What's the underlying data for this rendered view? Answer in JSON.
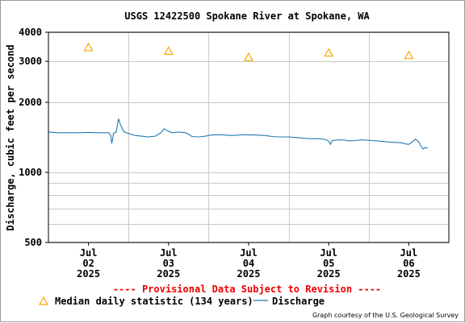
{
  "chart_data": {
    "type": "line",
    "title": "USGS 12422500 Spokane River at Spokane, WA",
    "ylabel": "Discharge, cubic feet per second",
    "xlabel": "",
    "yscale": "log",
    "ylim": [
      500,
      4000
    ],
    "y_ticks": [
      {
        "value": 500,
        "label": "500"
      },
      {
        "value": 1000,
        "label": "1000"
      },
      {
        "value": 2000,
        "label": "2000"
      },
      {
        "value": 3000,
        "label": "3000"
      },
      {
        "value": 4000,
        "label": "4000"
      }
    ],
    "y_minor_ticks": [
      600,
      700,
      800,
      900
    ],
    "xlim": [
      "2025-07-01T12:00",
      "2025-07-06T12:00"
    ],
    "x_ticks": [
      {
        "date": "2025-07-02T00:00",
        "label": [
          "Jul",
          "02",
          "2025"
        ]
      },
      {
        "date": "2025-07-03T00:00",
        "label": [
          "Jul",
          "03",
          "2025"
        ]
      },
      {
        "date": "2025-07-04T00:00",
        "label": [
          "Jul",
          "04",
          "2025"
        ]
      },
      {
        "date": "2025-07-05T00:00",
        "label": [
          "Jul",
          "05",
          "2025"
        ]
      },
      {
        "date": "2025-07-06T00:00",
        "label": [
          "Jul",
          "06",
          "2025"
        ]
      }
    ],
    "x_gridlines": [
      "2025-07-02T12:00",
      "2025-07-03T12:00",
      "2025-07-04T12:00",
      "2025-07-05T12:00"
    ],
    "grid": true,
    "series": [
      {
        "name": "Discharge",
        "color": "#1f77b4",
        "marker": "line",
        "points": [
          [
            "2025-07-01T12:00",
            1490
          ],
          [
            "2025-07-01T15:00",
            1480
          ],
          [
            "2025-07-01T18:00",
            1480
          ],
          [
            "2025-07-01T21:00",
            1480
          ],
          [
            "2025-07-02T00:00",
            1485
          ],
          [
            "2025-07-02T03:00",
            1480
          ],
          [
            "2025-07-02T06:00",
            1480
          ],
          [
            "2025-07-02T06:40",
            1440
          ],
          [
            "2025-07-02T07:00",
            1330
          ],
          [
            "2025-07-02T07:30",
            1470
          ],
          [
            "2025-07-02T08:20",
            1490
          ],
          [
            "2025-07-02T09:00",
            1700
          ],
          [
            "2025-07-02T09:40",
            1590
          ],
          [
            "2025-07-02T10:40",
            1490
          ],
          [
            "2025-07-02T12:00",
            1470
          ],
          [
            "2025-07-02T14:00",
            1440
          ],
          [
            "2025-07-02T16:00",
            1430
          ],
          [
            "2025-07-02T18:00",
            1420
          ],
          [
            "2025-07-02T20:00",
            1430
          ],
          [
            "2025-07-02T21:40",
            1480
          ],
          [
            "2025-07-02T22:40",
            1540
          ],
          [
            "2025-07-02T23:40",
            1510
          ],
          [
            "2025-07-03T01:00",
            1480
          ],
          [
            "2025-07-03T03:00",
            1490
          ],
          [
            "2025-07-03T05:00",
            1480
          ],
          [
            "2025-07-03T06:00",
            1460
          ],
          [
            "2025-07-03T07:00",
            1425
          ],
          [
            "2025-07-03T09:00",
            1420
          ],
          [
            "2025-07-03T11:00",
            1430
          ],
          [
            "2025-07-03T13:00",
            1450
          ],
          [
            "2025-07-03T16:00",
            1450
          ],
          [
            "2025-07-03T19:00",
            1440
          ],
          [
            "2025-07-03T22:00",
            1450
          ],
          [
            "2025-07-04T01:00",
            1450
          ],
          [
            "2025-07-04T03:00",
            1445
          ],
          [
            "2025-07-04T05:00",
            1440
          ],
          [
            "2025-07-04T07:00",
            1425
          ],
          [
            "2025-07-04T09:00",
            1420
          ],
          [
            "2025-07-04T12:00",
            1420
          ],
          [
            "2025-07-04T15:00",
            1410
          ],
          [
            "2025-07-04T17:00",
            1400
          ],
          [
            "2025-07-04T19:00",
            1395
          ],
          [
            "2025-07-04T21:00",
            1395
          ],
          [
            "2025-07-04T23:00",
            1385
          ],
          [
            "2025-07-05T00:00",
            1360
          ],
          [
            "2025-07-05T00:30",
            1320
          ],
          [
            "2025-07-05T01:00",
            1370
          ],
          [
            "2025-07-05T03:00",
            1380
          ],
          [
            "2025-07-05T05:00",
            1375
          ],
          [
            "2025-07-05T06:00",
            1365
          ],
          [
            "2025-07-05T08:00",
            1370
          ],
          [
            "2025-07-05T10:00",
            1380
          ],
          [
            "2025-07-05T13:00",
            1370
          ],
          [
            "2025-07-05T16:00",
            1360
          ],
          [
            "2025-07-05T18:00",
            1350
          ],
          [
            "2025-07-05T20:00",
            1345
          ],
          [
            "2025-07-05T22:00",
            1340
          ],
          [
            "2025-07-05T23:00",
            1325
          ],
          [
            "2025-07-06T00:00",
            1320
          ],
          [
            "2025-07-06T01:00",
            1350
          ],
          [
            "2025-07-06T02:00",
            1390
          ],
          [
            "2025-07-06T03:00",
            1350
          ],
          [
            "2025-07-06T03:40",
            1290
          ],
          [
            "2025-07-06T04:20",
            1260
          ],
          [
            "2025-07-06T05:00",
            1280
          ],
          [
            "2025-07-06T05:40",
            1270
          ]
        ]
      },
      {
        "name": "Median daily statistic (134 years)",
        "color": "#ffa500",
        "marker": "triangle-open",
        "points": [
          [
            "2025-07-02T00:00",
            3440
          ],
          [
            "2025-07-03T00:00",
            3320
          ],
          [
            "2025-07-04T00:00",
            3120
          ],
          [
            "2025-07-05T00:00",
            3260
          ],
          [
            "2025-07-06T00:00",
            3180
          ]
        ]
      }
    ]
  },
  "provisional_notice": "---- Provisional Data Subject to Revision ----",
  "legend": {
    "median_label": "Median daily statistic (134 years)",
    "discharge_label": "Discharge",
    "median_color": "#ffa500",
    "discharge_color": "#1f77b4"
  },
  "credit": "Graph courtesy of the U.S. Geological Survey",
  "colors": {
    "notice": "#ee0000",
    "grid": "#c8c8c8",
    "axis": "#000000"
  }
}
